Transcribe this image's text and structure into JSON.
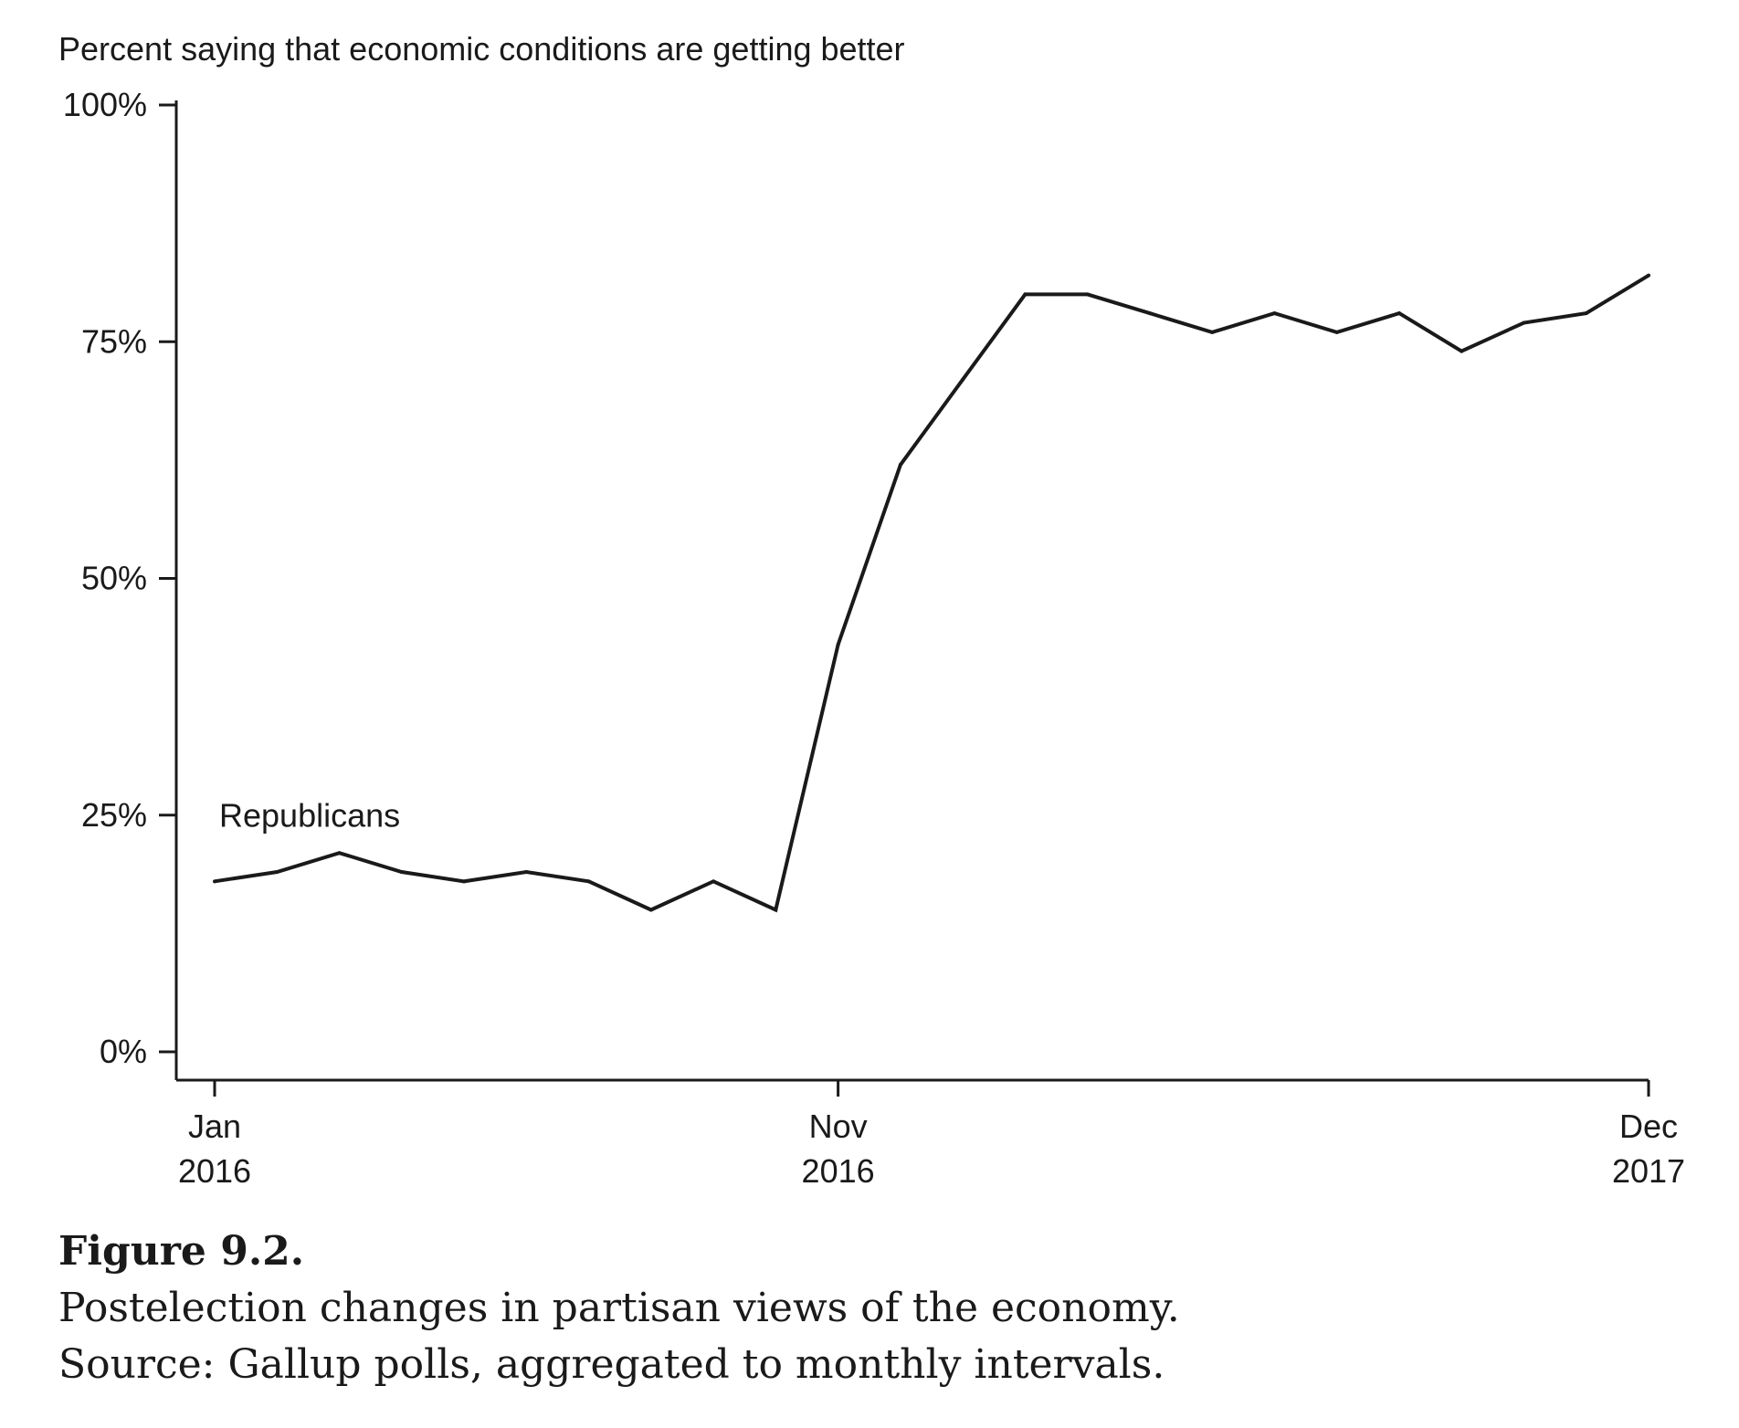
{
  "chart_data": {
    "type": "line",
    "title": "Percent saying that economic conditions are getting better",
    "xlabel": "",
    "ylabel": "",
    "ylim": [
      0,
      100
    ],
    "yticks": [
      {
        "value": 0,
        "label": "0%"
      },
      {
        "value": 25,
        "label": "25%"
      },
      {
        "value": 50,
        "label": "50%"
      },
      {
        "value": 75,
        "label": "75%"
      },
      {
        "value": 100,
        "label": "100%"
      }
    ],
    "xticks": [
      {
        "date": "2016-01",
        "line1": "Jan",
        "line2": "2016"
      },
      {
        "date": "2016-11",
        "line1": "Nov",
        "line2": "2016"
      },
      {
        "date": "2017-12",
        "line1": "Dec",
        "line2": "2017"
      }
    ],
    "xlim": [
      "2016-01",
      "2017-12"
    ],
    "grid": false,
    "series": [
      {
        "name": "Republicans",
        "x": [
          "2016-01",
          "2016-02",
          "2016-03",
          "2016-04",
          "2016-05",
          "2016-06",
          "2016-07",
          "2016-08",
          "2016-09",
          "2016-10",
          "2016-11",
          "2016-12",
          "2017-01",
          "2017-02",
          "2017-03",
          "2017-04",
          "2017-05",
          "2017-06",
          "2017-07",
          "2017-08",
          "2017-09",
          "2017-10",
          "2017-11",
          "2017-12"
        ],
        "values": [
          18,
          19,
          21,
          19,
          18,
          19,
          18,
          15,
          18,
          15,
          43,
          62,
          71,
          80,
          80,
          78,
          76,
          78,
          76,
          78,
          74,
          77,
          78,
          82
        ]
      }
    ]
  },
  "caption": {
    "title": "Figure 9.2.",
    "line1": "Postelection changes in partisan views of the economy.",
    "line2": "Source: Gallup polls, aggregated to monthly intervals."
  }
}
